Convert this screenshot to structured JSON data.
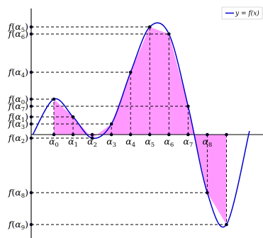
{
  "chart_data": {
    "type": "area",
    "title": "",
    "xlabel": "",
    "ylabel": "",
    "grid": false,
    "legend": {
      "placement": "top-right",
      "entries": [
        "y = f(x)"
      ]
    },
    "colors": {
      "curve": "#0000cc",
      "fill": "#ff99ff",
      "dots": "#000022",
      "guides": "#000000"
    },
    "series": [
      {
        "name": "y = f(x)",
        "points": [
          {
            "label": "α0",
            "x": 0,
            "y": 0.5,
            "xtick": "α0",
            "ytick": "f(α0)"
          },
          {
            "label": "α1",
            "x": 1,
            "y": 0.25,
            "xtick": "α1",
            "ytick": "f(α1)"
          },
          {
            "label": "α2",
            "x": 2,
            "y": -0.05,
            "xtick": "α2",
            "ytick": "f(α2)"
          },
          {
            "label": "α3",
            "x": 3,
            "y": 0.15,
            "xtick": "α3",
            "ytick": "f(α3)"
          },
          {
            "label": "α4",
            "x": 4,
            "y": 0.88,
            "xtick": "α4",
            "ytick": "f(α4)"
          },
          {
            "label": "α5",
            "x": 5,
            "y": 1.52,
            "xtick": "α5",
            "ytick": "f(α5)"
          },
          {
            "label": "α6",
            "x": 6,
            "y": 1.42,
            "xtick": "α6",
            "ytick": "f(α6)"
          },
          {
            "label": "α7",
            "x": 7,
            "y": 0.4,
            "xtick": "α7",
            "ytick": "f(α7)"
          },
          {
            "label": "α8",
            "x": 8,
            "y": -0.82,
            "xtick": "α8",
            "ytick": "f(α8)"
          },
          {
            "label": "α9",
            "x": 9,
            "y": -1.27,
            "xtick": "α9",
            "ytick": "f(α9)"
          }
        ]
      }
    ],
    "xlim": [
      -1.2,
      10.2
    ],
    "ylim": [
      -1.4,
      1.75
    ]
  }
}
